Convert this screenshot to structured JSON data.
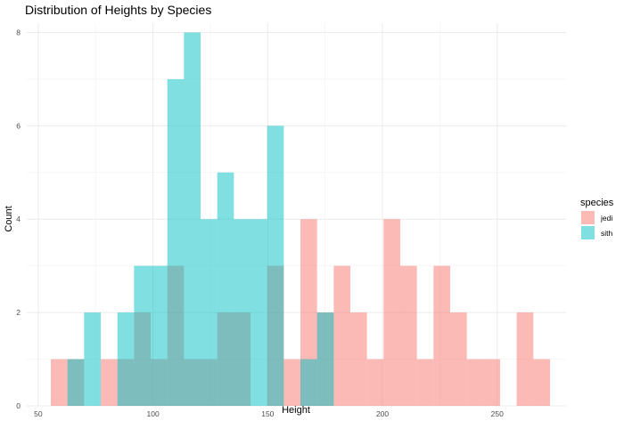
{
  "chart_data": {
    "type": "bar",
    "subtype": "overlapping-histogram",
    "title": "Distribution of Heights by Species",
    "xlabel": "Height",
    "ylabel": "Count",
    "xlim": [
      45,
      280
    ],
    "ylim": [
      0,
      8.2
    ],
    "x_ticks": [
      50,
      100,
      150,
      200,
      250
    ],
    "y_ticks": [
      0,
      2,
      4,
      6,
      8
    ],
    "grid": true,
    "bin_width": 7.25,
    "legend": {
      "title": "species",
      "position": "right"
    },
    "series": [
      {
        "name": "jedi",
        "color": "#f8766d",
        "bins": [
          {
            "x0": 55.5,
            "x1": 62.75,
            "count": 1
          },
          {
            "x0": 62.75,
            "x1": 70.0,
            "count": 1
          },
          {
            "x0": 77.25,
            "x1": 84.5,
            "count": 1
          },
          {
            "x0": 84.5,
            "x1": 91.75,
            "count": 1
          },
          {
            "x0": 91.75,
            "x1": 99.0,
            "count": 2
          },
          {
            "x0": 99.0,
            "x1": 106.25,
            "count": 1
          },
          {
            "x0": 106.25,
            "x1": 113.5,
            "count": 3
          },
          {
            "x0": 113.5,
            "x1": 120.75,
            "count": 1
          },
          {
            "x0": 120.75,
            "x1": 128.0,
            "count": 1
          },
          {
            "x0": 128.0,
            "x1": 135.25,
            "count": 2
          },
          {
            "x0": 135.25,
            "x1": 142.5,
            "count": 2
          },
          {
            "x0": 149.75,
            "x1": 157.0,
            "count": 3
          },
          {
            "x0": 157.0,
            "x1": 164.25,
            "count": 1
          },
          {
            "x0": 164.25,
            "x1": 171.5,
            "count": 4
          },
          {
            "x0": 171.5,
            "x1": 178.75,
            "count": 2
          },
          {
            "x0": 178.75,
            "x1": 186.0,
            "count": 3
          },
          {
            "x0": 186.0,
            "x1": 193.25,
            "count": 2
          },
          {
            "x0": 193.25,
            "x1": 200.5,
            "count": 1
          },
          {
            "x0": 200.5,
            "x1": 207.75,
            "count": 4
          },
          {
            "x0": 207.75,
            "x1": 215.0,
            "count": 3
          },
          {
            "x0": 215.0,
            "x1": 222.25,
            "count": 1
          },
          {
            "x0": 222.25,
            "x1": 229.5,
            "count": 3
          },
          {
            "x0": 229.5,
            "x1": 236.75,
            "count": 2
          },
          {
            "x0": 236.75,
            "x1": 244.0,
            "count": 1
          },
          {
            "x0": 244.0,
            "x1": 251.25,
            "count": 1
          },
          {
            "x0": 258.5,
            "x1": 265.75,
            "count": 2
          },
          {
            "x0": 265.75,
            "x1": 273.0,
            "count": 1
          }
        ]
      },
      {
        "name": "sith",
        "color": "#00bfc4",
        "bins": [
          {
            "x0": 62.75,
            "x1": 70.0,
            "count": 1
          },
          {
            "x0": 70.0,
            "x1": 77.25,
            "count": 2
          },
          {
            "x0": 84.5,
            "x1": 91.75,
            "count": 2
          },
          {
            "x0": 91.75,
            "x1": 99.0,
            "count": 3
          },
          {
            "x0": 99.0,
            "x1": 106.25,
            "count": 3
          },
          {
            "x0": 106.25,
            "x1": 113.5,
            "count": 7
          },
          {
            "x0": 113.5,
            "x1": 120.75,
            "count": 8
          },
          {
            "x0": 120.75,
            "x1": 128.0,
            "count": 4
          },
          {
            "x0": 128.0,
            "x1": 135.25,
            "count": 5
          },
          {
            "x0": 135.25,
            "x1": 142.5,
            "count": 4
          },
          {
            "x0": 142.5,
            "x1": 149.75,
            "count": 4
          },
          {
            "x0": 149.75,
            "x1": 157.0,
            "count": 6
          },
          {
            "x0": 164.25,
            "x1": 171.5,
            "count": 1
          },
          {
            "x0": 171.5,
            "x1": 178.75,
            "count": 2
          }
        ]
      }
    ]
  }
}
